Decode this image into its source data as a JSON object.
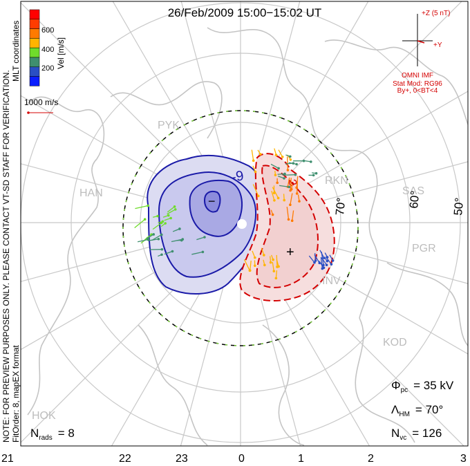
{
  "title": "26/Feb/2009 15:00−15:02 UT",
  "coordinates_label": "MLT coordinates",
  "note": "NOTE: FOR PREVIEW PURPOSES ONLY. PLEASE CONTACT VT-SD STAFF FOR VERIFICATION.",
  "fit_info": "FitOrder: 8, mapEX format",
  "colorbar": {
    "label": "Vel [m/s]",
    "ticks": [
      "200",
      "400",
      "600"
    ],
    "colors": [
      "#0a1eff",
      "#2a4fc4",
      "#3f8f6f",
      "#6fdc2b",
      "#ffb400",
      "#ff7a00",
      "#ff3c00",
      "#ff0000"
    ]
  },
  "reference_vector": "1000 m/s",
  "imf": {
    "z_label": "+Z (5 nT)",
    "y_label": "+Y",
    "source": "OMNI IMF",
    "model": "Stat Mod: RG96",
    "condition": "By+, 0<BT<4"
  },
  "contour_labels": {
    "negative": "-9",
    "positive": "3",
    "min_marker": "−",
    "max_marker": "+"
  },
  "latitude_labels": [
    "70°",
    "60°",
    "50°"
  ],
  "stations": [
    "PYK",
    "HAN",
    "RKN",
    "SAS",
    "PGR",
    "INV",
    "KOD",
    "HOK"
  ],
  "mlt_labels": [
    "21",
    "22",
    "23",
    "0",
    "1",
    "2",
    "3"
  ],
  "stats": {
    "phi_pc": {
      "symbol": "Φ",
      "sub": "pc",
      "value": "= 35 kV"
    },
    "lambda_hm": {
      "symbol": "Λ",
      "sub": "HM",
      "value": "= 70°"
    },
    "n_vc": {
      "symbol": "N",
      "sub": "vc",
      "value": "= 126"
    },
    "n_rads": {
      "symbol": "N",
      "sub": "rads",
      "value": "= 8"
    }
  },
  "colors": {
    "negative_contour": "#1a1aa8",
    "positive_contour": "#d40000",
    "grid": "#c8c8c8"
  }
}
